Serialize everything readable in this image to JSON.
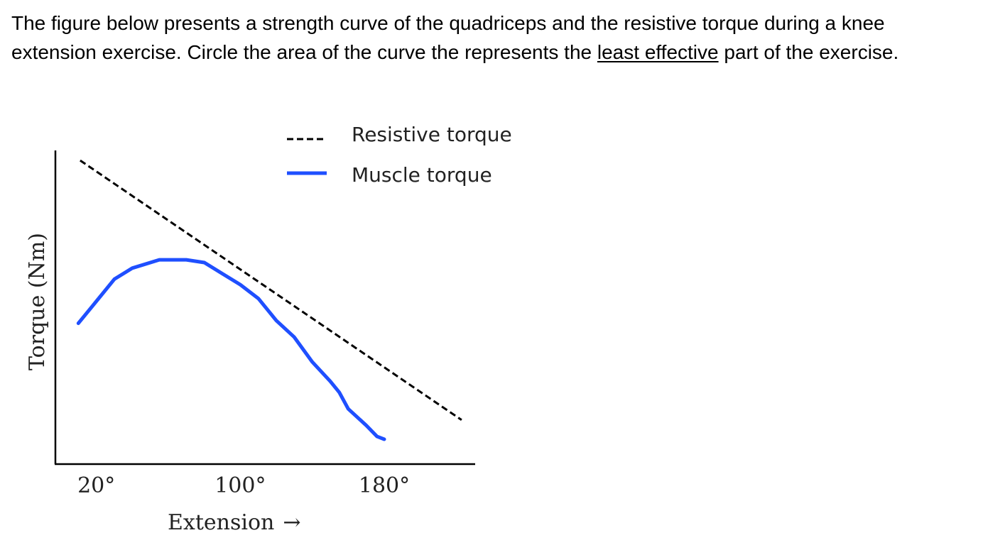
{
  "question": {
    "line1": "The figure below presents a strength curve of the quadriceps and the resistive torque during a knee",
    "line2_before": "extension exercise. Circle the area of the curve the represents the ",
    "line2_underlined": "least effective",
    "line2_after": " part of the exercise."
  },
  "chart_data": {
    "type": "line",
    "xlabel": "Extension",
    "xlabel_arrow": "→",
    "ylabel": "Torque (Nm)",
    "x_ticks": [
      {
        "value": 20,
        "label": "20°"
      },
      {
        "value": 100,
        "label": "100°"
      },
      {
        "value": 180,
        "label": "180°"
      }
    ],
    "xlim": [
      0,
      240
    ],
    "ylim": [
      0,
      100
    ],
    "y_ticks_shown": false,
    "grid": false,
    "legend": {
      "placement": "top-right",
      "entries": [
        {
          "label": "Resistive torque",
          "style": "dashed",
          "color": "#000000"
        },
        {
          "label": "Muscle torque",
          "style": "solid",
          "color": "#1f4fff"
        }
      ]
    },
    "series": [
      {
        "name": "Resistive torque",
        "style": "dashed",
        "color": "#000000",
        "x": [
          11,
          223
        ],
        "y": [
          110,
          16
        ]
      },
      {
        "name": "Muscle torque",
        "style": "solid",
        "color": "#1f4fff",
        "x": [
          10,
          20,
          30,
          40,
          55,
          70,
          80,
          90,
          100,
          110,
          120,
          130,
          140,
          150,
          155,
          160,
          170,
          176,
          180
        ],
        "y": [
          51,
          59,
          67,
          71,
          74,
          74,
          73,
          69,
          65,
          60,
          52,
          46,
          37,
          30,
          26,
          20,
          14,
          10,
          9
        ]
      }
    ]
  }
}
